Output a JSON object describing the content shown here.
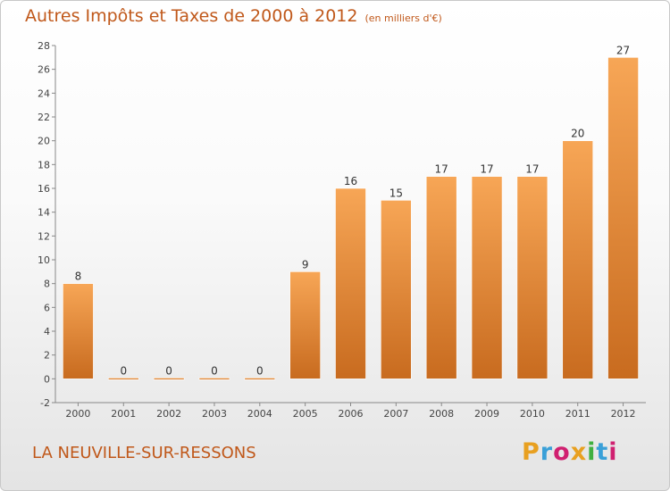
{
  "chart_data": {
    "type": "bar",
    "title": "Autres Impôts et Taxes de 2000 à 2012",
    "subtitle": "(en milliers d'€)",
    "categories": [
      "2000",
      "2001",
      "2002",
      "2003",
      "2004",
      "2005",
      "2006",
      "2007",
      "2008",
      "2009",
      "2010",
      "2011",
      "2012"
    ],
    "values": [
      8,
      0,
      0,
      0,
      0,
      9,
      16,
      15,
      17,
      17,
      17,
      20,
      27
    ],
    "value_labels": [
      "8",
      "0",
      "0",
      "0",
      "0",
      "9",
      "16",
      "15",
      "17",
      "17",
      "17",
      "20",
      "27"
    ],
    "ylim": [
      -2,
      28
    ],
    "yticks": [
      -2,
      0,
      2,
      4,
      6,
      8,
      10,
      12,
      14,
      16,
      18,
      20,
      22,
      24,
      26,
      28
    ],
    "grid": false,
    "xlabel": "",
    "ylabel": ""
  },
  "footer": {
    "city": "LA NEUVILLE-SUR-RESSONS",
    "logo_text": "Proxiti"
  },
  "colors": {
    "accent_text": "#c0581a",
    "bar_top": "#f7a656",
    "bar_bottom": "#c86b1f",
    "axis": "#888888",
    "logo_letters": [
      "#e8a020",
      "#3aa0d8",
      "#d02070",
      "#e8a020",
      "#40b040",
      "#3aa0d8",
      "#d02070"
    ]
  }
}
